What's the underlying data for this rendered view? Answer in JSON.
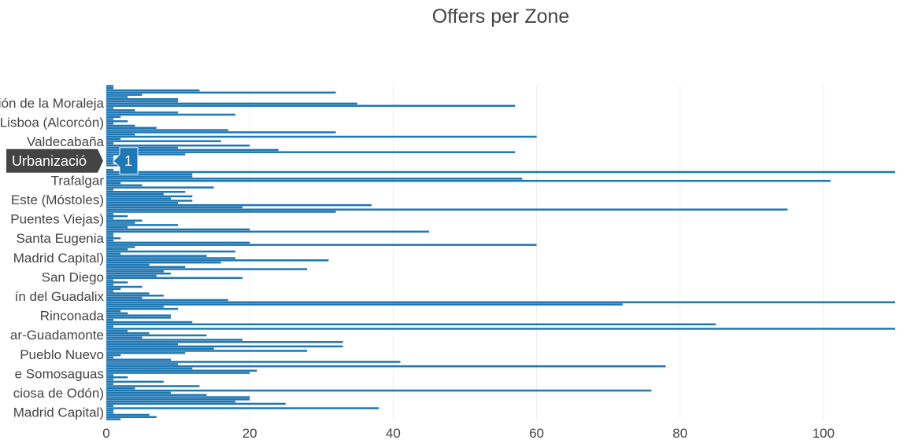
{
  "chart_data": {
    "type": "bar",
    "orientation": "horizontal",
    "title": "Offers per Zone",
    "xlabel": "",
    "ylabel": "",
    "xlim": [
      0,
      110
    ],
    "x_ticks": [
      0,
      20,
      40,
      60,
      80,
      100
    ],
    "grid": true,
    "bar_color": "#1f77b4",
    "y_tick_labels": [
      "Urbanización de la Moraleja",
      "Lisboa (Alcorcón)",
      "Valdecabaña",
      "Urbanización",
      "Trafalgar",
      "Este (Móstoles)",
      "Puentes Viejas)",
      "Santa Eugenia",
      "Madrid Capital)",
      "San Diego",
      "ín del Guadalix",
      "Rinconada",
      "ar-Guadamonte",
      "Pueblo Nuevo",
      "e Somosaguas",
      "ciosa de Odón)",
      "Madrid Capital)"
    ],
    "values": [
      1,
      1,
      13,
      32,
      5,
      3,
      10,
      10,
      35,
      57,
      1,
      4,
      10,
      18,
      2,
      1,
      3,
      1,
      4,
      7,
      17,
      32,
      4,
      60,
      2,
      16,
      1,
      20,
      10,
      24,
      57,
      11,
      1,
      1,
      2,
      1,
      2,
      0,
      1,
      110,
      12,
      12,
      58,
      101,
      2,
      5,
      15,
      1,
      11,
      8,
      12,
      9,
      12,
      10,
      37,
      19,
      95,
      32,
      1,
      3,
      1,
      5,
      4,
      10,
      3,
      20,
      45,
      1,
      1,
      2,
      1,
      20,
      60,
      4,
      3,
      18,
      2,
      14,
      18,
      31,
      16,
      6,
      11,
      28,
      8,
      9,
      7,
      19,
      1,
      3,
      1,
      5,
      2,
      1,
      6,
      8,
      5,
      17,
      110,
      72,
      8,
      10,
      2,
      3,
      9,
      9,
      1,
      12,
      85,
      1,
      110,
      3,
      6,
      14,
      5,
      19,
      33,
      10,
      33,
      15,
      28,
      11,
      2,
      1,
      9,
      41,
      10,
      78,
      12,
      21,
      20,
      1,
      3,
      1,
      8,
      1,
      13,
      4,
      76,
      9,
      14,
      20,
      20,
      18,
      25,
      1,
      38,
      1,
      1,
      6,
      7,
      2
    ],
    "hover": {
      "label": "Urbanizació",
      "value": "1"
    }
  }
}
